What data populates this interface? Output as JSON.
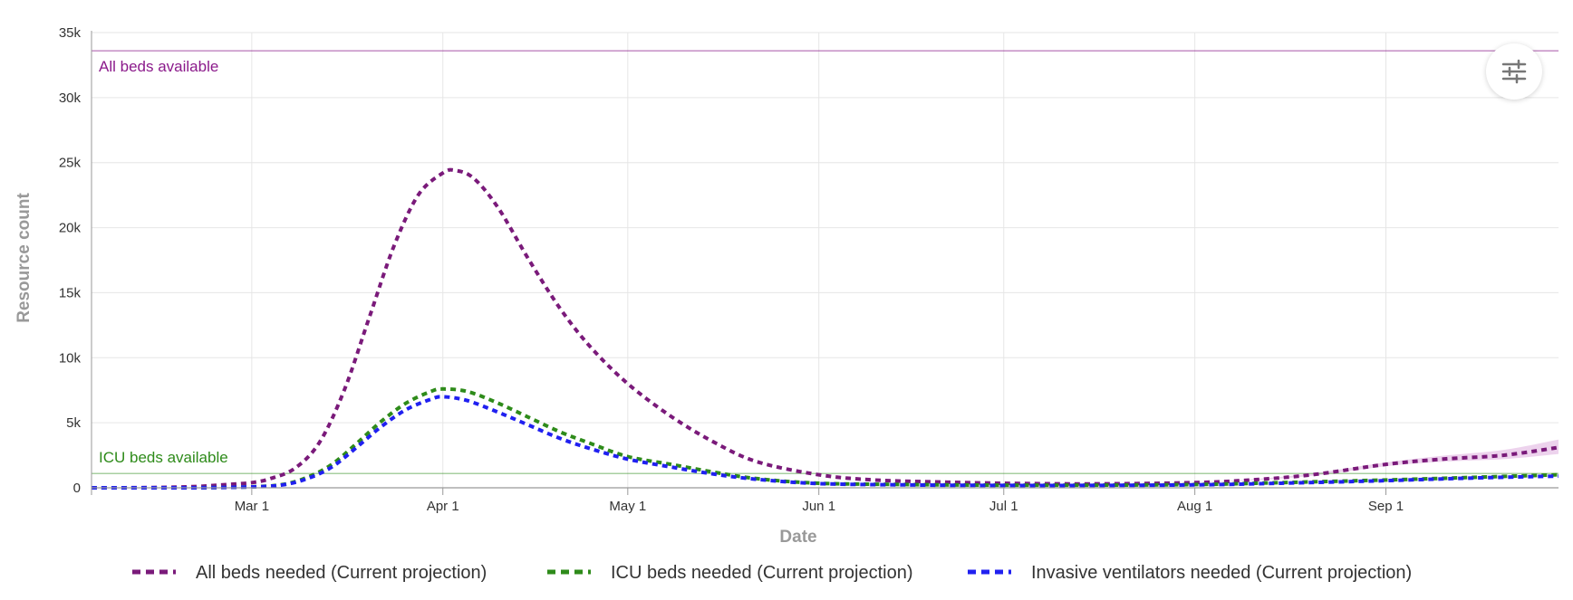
{
  "chart_data": {
    "type": "line",
    "xlabel": "Date",
    "ylabel": "Resource count",
    "xlim": [
      "2020-02-04",
      "2020-09-29"
    ],
    "ylim": [
      0,
      35000
    ],
    "x_ticks": [
      {
        "date": "2020-03-01",
        "label": "Mar 1"
      },
      {
        "date": "2020-04-01",
        "label": "Apr 1"
      },
      {
        "date": "2020-05-01",
        "label": "May 1"
      },
      {
        "date": "2020-06-01",
        "label": "Jun 1"
      },
      {
        "date": "2020-07-01",
        "label": "Jul 1"
      },
      {
        "date": "2020-08-01",
        "label": "Aug 1"
      },
      {
        "date": "2020-09-01",
        "label": "Sep 1"
      }
    ],
    "y_ticks": [
      {
        "value": 0,
        "label": "0"
      },
      {
        "value": 5000,
        "label": "5k"
      },
      {
        "value": 10000,
        "label": "10k"
      },
      {
        "value": 15000,
        "label": "15k"
      },
      {
        "value": 20000,
        "label": "20k"
      },
      {
        "value": 25000,
        "label": "25k"
      },
      {
        "value": 30000,
        "label": "30k"
      },
      {
        "value": 35000,
        "label": "35k"
      }
    ],
    "grid": true,
    "legend_position": "bottom",
    "reference_lines": [
      {
        "name": "All beds available",
        "value": 33600,
        "color": "#8b1a8b"
      },
      {
        "name": "ICU beds available",
        "value": 1100,
        "color": "#2e8b1a"
      }
    ],
    "series": [
      {
        "name": "All beds needed (Current projection)",
        "color": "#7a1a7a",
        "band_color": "#e8c8e8",
        "x": [
          "2020-02-04",
          "2020-02-14",
          "2020-02-21",
          "2020-02-26",
          "2020-03-01",
          "2020-03-04",
          "2020-03-08",
          "2020-03-12",
          "2020-03-16",
          "2020-03-20",
          "2020-03-24",
          "2020-03-28",
          "2020-04-01",
          "2020-04-03",
          "2020-04-06",
          "2020-04-10",
          "2020-04-15",
          "2020-04-20",
          "2020-04-25",
          "2020-05-01",
          "2020-05-08",
          "2020-05-15",
          "2020-05-22",
          "2020-06-01",
          "2020-06-10",
          "2020-06-20",
          "2020-07-01",
          "2020-07-15",
          "2020-08-01",
          "2020-08-10",
          "2020-08-20",
          "2020-09-01",
          "2020-09-10",
          "2020-09-20",
          "2020-09-29"
        ],
        "values": [
          0,
          20,
          100,
          250,
          400,
          700,
          1500,
          3500,
          7500,
          13000,
          18500,
          22500,
          24200,
          24400,
          23800,
          21500,
          17500,
          13800,
          10800,
          8000,
          5500,
          3500,
          2000,
          1000,
          600,
          450,
          350,
          300,
          400,
          600,
          1000,
          1800,
          2200,
          2500,
          3100
        ],
        "band_upper": [
          0,
          20,
          100,
          250,
          400,
          700,
          1500,
          3500,
          7500,
          13000,
          18500,
          22500,
          24200,
          24400,
          23800,
          21500,
          17500,
          13800,
          10800,
          8000,
          5500,
          3500,
          2000,
          1000,
          600,
          450,
          350,
          300,
          420,
          650,
          1100,
          1950,
          2450,
          2900,
          3700
        ],
        "band_lower": [
          0,
          20,
          100,
          250,
          400,
          700,
          1500,
          3500,
          7500,
          13000,
          18500,
          22500,
          24200,
          24400,
          23800,
          21500,
          17500,
          13800,
          10800,
          8000,
          5500,
          3500,
          2000,
          1000,
          600,
          450,
          350,
          300,
          380,
          560,
          920,
          1650,
          2000,
          2200,
          2600
        ]
      },
      {
        "name": "ICU beds needed (Current projection)",
        "color": "#2e8b1a",
        "x": [
          "2020-02-04",
          "2020-02-20",
          "2020-03-01",
          "2020-03-06",
          "2020-03-10",
          "2020-03-14",
          "2020-03-18",
          "2020-03-22",
          "2020-03-26",
          "2020-03-30",
          "2020-04-01",
          "2020-04-05",
          "2020-04-10",
          "2020-04-15",
          "2020-04-20",
          "2020-04-25",
          "2020-05-01",
          "2020-05-08",
          "2020-05-15",
          "2020-05-22",
          "2020-06-01",
          "2020-06-15",
          "2020-07-01",
          "2020-07-15",
          "2020-08-01",
          "2020-08-15",
          "2020-09-01",
          "2020-09-15",
          "2020-09-29"
        ],
        "values": [
          0,
          0,
          80,
          250,
          800,
          1800,
          3400,
          5100,
          6500,
          7400,
          7600,
          7400,
          6500,
          5400,
          4300,
          3400,
          2400,
          1800,
          1200,
          700,
          350,
          250,
          200,
          200,
          250,
          400,
          600,
          800,
          1000
        ]
      },
      {
        "name": "Invasive ventilators needed (Current projection)",
        "color": "#2020f0",
        "x": [
          "2020-02-04",
          "2020-02-20",
          "2020-03-01",
          "2020-03-06",
          "2020-03-10",
          "2020-03-14",
          "2020-03-18",
          "2020-03-22",
          "2020-03-26",
          "2020-03-30",
          "2020-04-01",
          "2020-04-05",
          "2020-04-10",
          "2020-04-15",
          "2020-04-20",
          "2020-04-25",
          "2020-05-01",
          "2020-05-08",
          "2020-05-15",
          "2020-05-22",
          "2020-06-01",
          "2020-06-15",
          "2020-07-01",
          "2020-07-15",
          "2020-08-01",
          "2020-08-15",
          "2020-09-01",
          "2020-09-15",
          "2020-09-29"
        ],
        "values": [
          0,
          0,
          70,
          220,
          700,
          1600,
          3100,
          4700,
          6000,
          6800,
          7000,
          6700,
          5800,
          4800,
          3800,
          3000,
          2200,
          1600,
          1050,
          650,
          320,
          220,
          180,
          180,
          220,
          350,
          550,
          750,
          900
        ]
      }
    ]
  },
  "icons": {
    "settings": "sliders-icon"
  }
}
